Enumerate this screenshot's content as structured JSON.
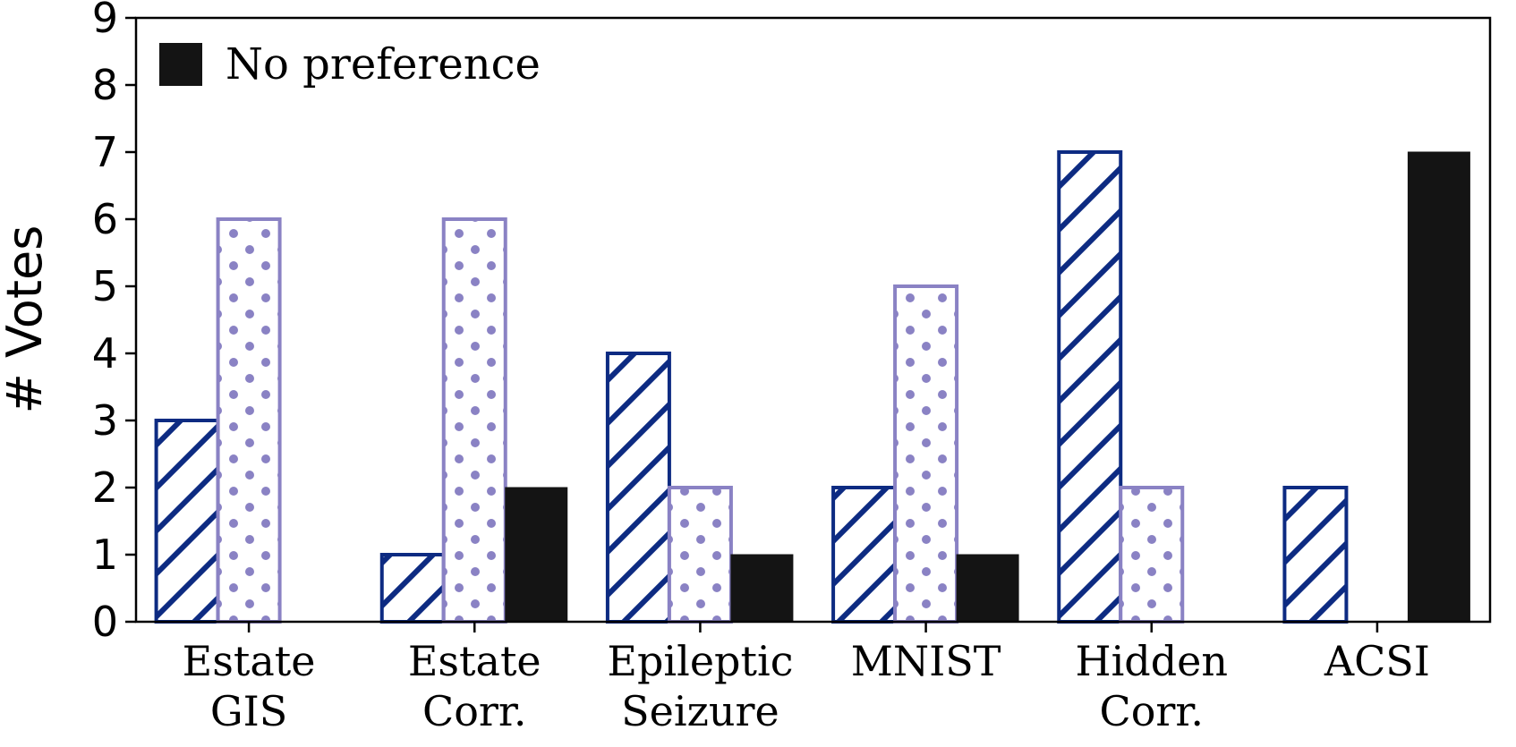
{
  "chart_data": {
    "type": "bar",
    "title": "",
    "xlabel": "",
    "ylabel": "# Votes",
    "ylim": [
      0,
      9
    ],
    "yticks": [
      0,
      1,
      2,
      3,
      4,
      5,
      6,
      7,
      8,
      9
    ],
    "grid": false,
    "categories": [
      [
        "Estate",
        "GIS"
      ],
      [
        "Estate",
        "Corr."
      ],
      [
        "Epileptic",
        "Seizure"
      ],
      [
        "MNIST"
      ],
      [
        "Hidden",
        "Corr."
      ],
      [
        "ACSI"
      ]
    ],
    "series": [
      {
        "name": "",
        "pattern": "hatch",
        "color": "#0d2b82",
        "values": [
          3,
          1,
          4,
          2,
          7,
          2
        ]
      },
      {
        "name": "",
        "pattern": "dots",
        "color": "#8a82c4",
        "values": [
          6,
          6,
          2,
          5,
          2,
          0
        ]
      },
      {
        "name": "No preference",
        "pattern": "solid",
        "color": "#141414",
        "values": [
          0,
          2,
          1,
          1,
          0,
          7
        ]
      }
    ],
    "legend": {
      "placement": "top-left",
      "entries": [
        "No preference"
      ]
    }
  }
}
